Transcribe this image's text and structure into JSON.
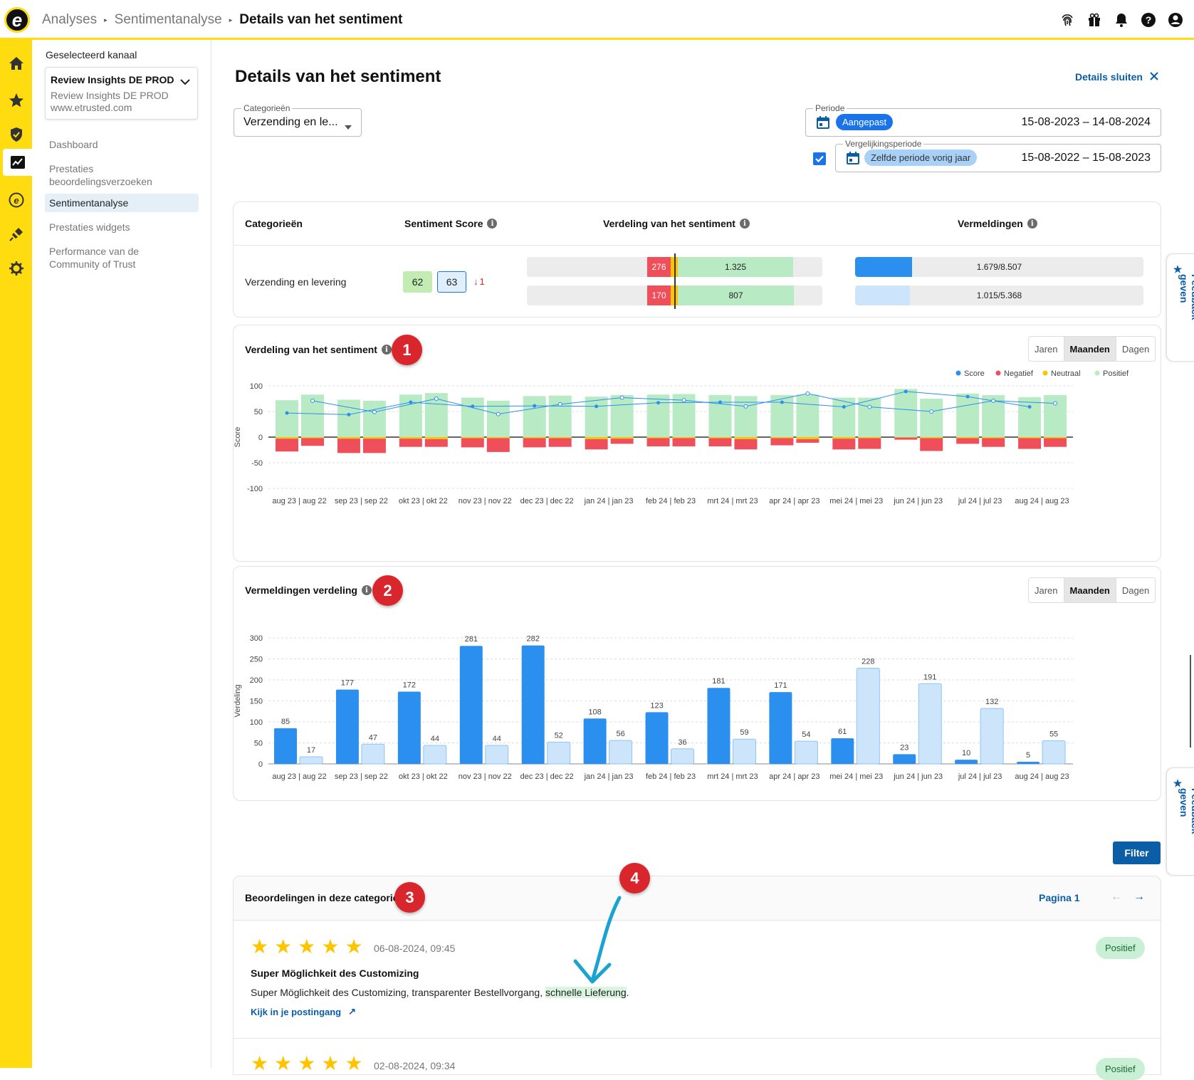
{
  "breadcrumb": {
    "items": [
      "Analyses",
      "Sentimentanalyse"
    ],
    "current": "Details van het sentiment"
  },
  "sidebar": {
    "channel_label": "Geselecteerd kanaal",
    "channel": {
      "name": "Review Insights DE PROD",
      "sub": "Review Insights DE PROD",
      "url": "www.etrusted.com"
    },
    "items": [
      {
        "label": "Dashboard"
      },
      {
        "label": "Prestaties beoordelingsverzoeken"
      },
      {
        "label": "Sentimentanalyse",
        "active": true
      },
      {
        "label": "Prestaties widgets"
      },
      {
        "label": "Performance van de Community of Trust"
      }
    ]
  },
  "page": {
    "title": "Details van het sentiment",
    "close_label": "Details sluiten"
  },
  "filters": {
    "categories_label": "Categorieën",
    "categories_value": "Verzending en le...",
    "period_label": "Periode",
    "period_badge": "Aangepast",
    "period_value": "15-08-2023 – 14-08-2024",
    "compare_label": "Vergelijkingsperiode",
    "compare_badge": "Zelfde periode vorig jaar",
    "compare_value": "15-08-2022 – 15-08-2023",
    "compare_checked": true
  },
  "summary": {
    "headers": [
      "Categorieën",
      "Sentiment Score",
      "Verdeling van het sentiment",
      "Vermeldingen"
    ],
    "row": {
      "category": "Verzending en levering",
      "score_current": "62",
      "score_previous": "63",
      "score_delta": "1",
      "dist_current": {
        "neg": "276",
        "pos": "1.325"
      },
      "dist_previous": {
        "neg": "170",
        "pos": "807"
      },
      "mentions_current": "1.679/8.507",
      "mentions_previous": "1.015/5.368",
      "mentions_current_fraction": 0.197,
      "mentions_previous_fraction": 0.189
    }
  },
  "chart1": {
    "title": "Verdeling van het sentiment",
    "marker": "1",
    "tabs": [
      "Jaren",
      "Maanden",
      "Dagen"
    ],
    "active_tab": "Maanden"
  },
  "chart2": {
    "title": "Vermeldingen verdeling",
    "marker": "2",
    "tabs": [
      "Jaren",
      "Maanden",
      "Dagen"
    ],
    "active_tab": "Maanden"
  },
  "chart_data": [
    {
      "type": "bar",
      "ylabel": "Score",
      "ylim": [
        -100,
        100
      ],
      "yticks": [
        100,
        50,
        0,
        -50,
        -100
      ],
      "categories": [
        "aug 23 | aug 22",
        "sep 23 | sep 22",
        "okt 23 | okt 22",
        "nov 23 | nov 22",
        "dec 23 | dec 22",
        "jan 24 | jan 23",
        "feb 24 | feb 23",
        "mrt 24 | mrt 23",
        "apr 24 | apr 23",
        "mei 24 | mei 23",
        "jun 24 | jun 23",
        "jul 24 | jul 23",
        "aug 24 | aug 23"
      ],
      "legend": [
        "Score",
        "Negatief",
        "Neutraal",
        "Positief"
      ],
      "colors": {
        "score": "#2b8ff0",
        "neg": "#ef4f5a",
        "neu": "#ffc400",
        "pos": "#b8ebc4"
      },
      "series": [
        {
          "name": "Positief",
          "current": [
            72,
            73,
            83,
            77,
            80,
            79,
            83,
            82,
            82,
            77,
            94,
            85,
            78
          ],
          "previous": [
            83,
            71,
            86,
            71,
            81,
            82,
            84,
            80,
            83,
            77,
            75,
            82,
            82
          ]
        },
        {
          "name": "Neutraal",
          "current": [
            3,
            3,
            3,
            2,
            2,
            4,
            2,
            2,
            2,
            3,
            1,
            2,
            2
          ],
          "previous": [
            2,
            3,
            4,
            2,
            2,
            3,
            2,
            4,
            4,
            2,
            2,
            2,
            2
          ]
        },
        {
          "name": "Negatief",
          "current": [
            -25,
            -28,
            -16,
            -18,
            -18,
            -20,
            -16,
            -16,
            -14,
            -21,
            -4,
            -11,
            -21
          ],
          "previous": [
            -15,
            -28,
            -15,
            -27,
            -17,
            -10,
            -16,
            -20,
            -7,
            -21,
            -25,
            -17,
            -17
          ]
        },
        {
          "name": "Score",
          "current": [
            47,
            44,
            68,
            60,
            61,
            60,
            67,
            68,
            68,
            59,
            89,
            79,
            59
          ],
          "previous": [
            71,
            49,
            75,
            45,
            64,
            77,
            72,
            60,
            85,
            59,
            50,
            71,
            66
          ]
        }
      ]
    },
    {
      "type": "bar",
      "ylabel": "Verdeling",
      "ylim": [
        0,
        300
      ],
      "yticks": [
        300,
        250,
        200,
        150,
        100,
        50,
        0
      ],
      "categories": [
        "aug 23 | aug 22",
        "sep 23 | sep 22",
        "okt 23 | okt 22",
        "nov 23 | nov 22",
        "dec 23 | dec 22",
        "jan 24 | jan 23",
        "feb 24 | feb 23",
        "mrt 24 | mrt 23",
        "apr 24 | apr 23",
        "mei 24 | mei 23",
        "jun 24 | jun 23",
        "jul 24 | jul 23",
        "aug 24 | aug 23"
      ],
      "series": [
        {
          "values": [
            85,
            177,
            172,
            281,
            282,
            108,
            123,
            181,
            171,
            61,
            23,
            10,
            5
          ]
        },
        {
          "values": [
            17,
            47,
            44,
            44,
            52,
            56,
            36,
            59,
            54,
            228,
            191,
            132,
            55
          ]
        }
      ]
    }
  ],
  "reviews": {
    "title": "Beoordelingen in deze categorie",
    "marker": "3",
    "arrow_marker": "4",
    "filter_label": "Filter",
    "page_label": "Pagina 1",
    "items": [
      {
        "stars": 5,
        "date": "06-08-2024, 09:45",
        "title": "Super Möglichkeit des Customizing",
        "body_pre": "Super Möglichkeit des Customizing, transparenter Bestellvorgang, ",
        "highlight": "schnelle Lieferung",
        "body_post": ".",
        "link": "Kijk in je postingang",
        "sentiment": "Positief"
      },
      {
        "stars": 5,
        "date": "02-08-2024, 09:34",
        "sentiment": "Positief"
      }
    ]
  },
  "feedback_label": "Feedback geven"
}
